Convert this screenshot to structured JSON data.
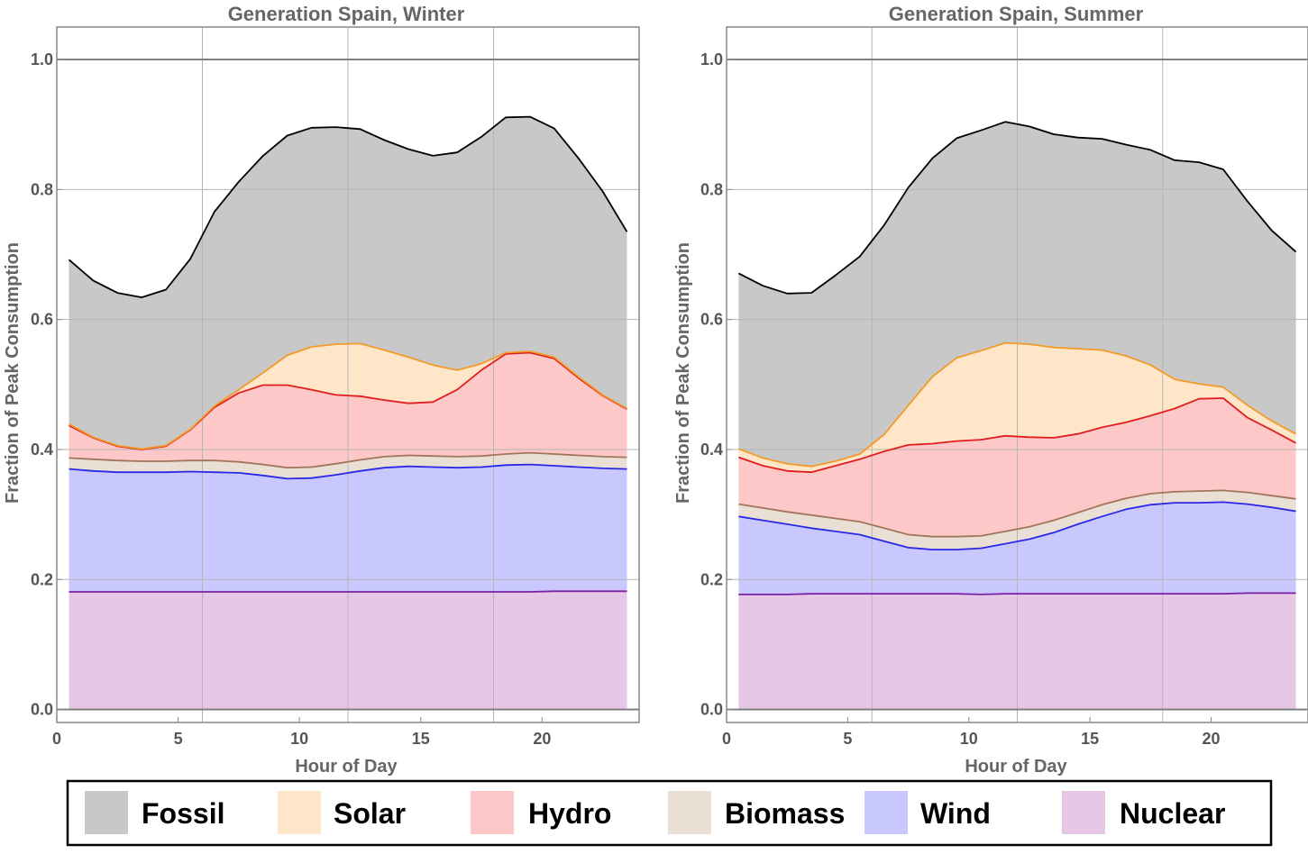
{
  "legend": [
    {
      "key": "fossil",
      "label": "Fossil",
      "fill": "#c8c8c8",
      "line": "#000000"
    },
    {
      "key": "solar",
      "label": "Solar",
      "fill": "#ffe6c8",
      "line": "#f39a28"
    },
    {
      "key": "hydro",
      "label": "Hydro",
      "fill": "#ffc8c8",
      "line": "#e01e1e"
    },
    {
      "key": "biomass",
      "label": "Biomass",
      "fill": "#e9dfd5",
      "line": "#a0765a"
    },
    {
      "key": "wind",
      "label": "Wind",
      "fill": "#c8c8ff",
      "line": "#2828e6"
    },
    {
      "key": "nuclear",
      "label": "Nuclear",
      "fill": "#e6c8e6",
      "line": "#7a1fa6"
    }
  ],
  "chart_data": [
    {
      "type": "area",
      "stacked": true,
      "title": "Generation Spain,  Winter",
      "xlabel": "Hour of Day",
      "ylabel": "Fraction of Peak Consumption",
      "xlim": [
        0,
        24
      ],
      "ylim": [
        -0.02,
        1.05
      ],
      "xticks": [
        0,
        5,
        10,
        15,
        20
      ],
      "yticks": [
        "0.0",
        "0.2",
        "0.4",
        "0.6",
        "0.8",
        "1.0"
      ],
      "ytick_values": [
        0,
        0.2,
        0.4,
        0.6,
        0.8,
        1.0
      ],
      "reference_line": 1.0,
      "grid": true,
      "x": [
        0.5,
        1.5,
        2.5,
        3.5,
        4.5,
        5.5,
        6.5,
        7.5,
        8.5,
        9.5,
        10.5,
        11.5,
        12.5,
        13.5,
        14.5,
        15.5,
        16.5,
        17.5,
        18.5,
        19.5,
        20.5,
        21.5,
        22.5,
        23.5
      ],
      "series_cumulative": [
        {
          "name": "Nuclear",
          "values": [
            0.181,
            0.181,
            0.181,
            0.181,
            0.181,
            0.181,
            0.181,
            0.181,
            0.181,
            0.181,
            0.181,
            0.181,
            0.181,
            0.181,
            0.181,
            0.181,
            0.181,
            0.181,
            0.181,
            0.181,
            0.182,
            0.182,
            0.182,
            0.182
          ]
        },
        {
          "name": "Wind",
          "values": [
            0.37,
            0.367,
            0.365,
            0.365,
            0.365,
            0.366,
            0.365,
            0.364,
            0.36,
            0.355,
            0.356,
            0.361,
            0.367,
            0.372,
            0.374,
            0.373,
            0.372,
            0.373,
            0.376,
            0.377,
            0.375,
            0.373,
            0.371,
            0.37
          ]
        },
        {
          "name": "Biomass",
          "values": [
            0.387,
            0.385,
            0.383,
            0.382,
            0.382,
            0.383,
            0.383,
            0.381,
            0.377,
            0.372,
            0.373,
            0.378,
            0.384,
            0.389,
            0.391,
            0.39,
            0.389,
            0.39,
            0.393,
            0.395,
            0.393,
            0.391,
            0.389,
            0.388
          ]
        },
        {
          "name": "Hydro",
          "values": [
            0.437,
            0.418,
            0.405,
            0.4,
            0.405,
            0.43,
            0.465,
            0.487,
            0.499,
            0.499,
            0.492,
            0.484,
            0.482,
            0.476,
            0.471,
            0.473,
            0.492,
            0.522,
            0.547,
            0.549,
            0.54,
            0.51,
            0.483,
            0.462
          ]
        },
        {
          "name": "Solar",
          "values": [
            0.439,
            0.419,
            0.406,
            0.401,
            0.406,
            0.431,
            0.467,
            0.492,
            0.518,
            0.545,
            0.558,
            0.562,
            0.563,
            0.553,
            0.542,
            0.53,
            0.522,
            0.532,
            0.549,
            0.551,
            0.542,
            0.512,
            0.484,
            0.463
          ]
        },
        {
          "name": "Fossil",
          "values": [
            0.692,
            0.66,
            0.641,
            0.634,
            0.646,
            0.693,
            0.766,
            0.812,
            0.852,
            0.883,
            0.895,
            0.896,
            0.893,
            0.876,
            0.862,
            0.852,
            0.857,
            0.881,
            0.911,
            0.912,
            0.894,
            0.848,
            0.797,
            0.735
          ]
        }
      ]
    },
    {
      "type": "area",
      "stacked": true,
      "title": "Generation Spain,  Summer",
      "xlabel": "Hour of Day",
      "ylabel": "Fraction of Peak Consumption",
      "xlim": [
        0,
        24
      ],
      "ylim": [
        -0.02,
        1.05
      ],
      "xticks": [
        0,
        5,
        10,
        15,
        20
      ],
      "yticks": [
        "0.0",
        "0.2",
        "0.4",
        "0.6",
        "0.8",
        "1.0"
      ],
      "ytick_values": [
        0,
        0.2,
        0.4,
        0.6,
        0.8,
        1.0
      ],
      "reference_line": 1.0,
      "grid": true,
      "x": [
        0.5,
        1.5,
        2.5,
        3.5,
        4.5,
        5.5,
        6.5,
        7.5,
        8.5,
        9.5,
        10.5,
        11.5,
        12.5,
        13.5,
        14.5,
        15.5,
        16.5,
        17.5,
        18.5,
        19.5,
        20.5,
        21.5,
        22.5,
        23.5
      ],
      "series_cumulative": [
        {
          "name": "Nuclear",
          "values": [
            0.177,
            0.177,
            0.177,
            0.178,
            0.178,
            0.178,
            0.178,
            0.178,
            0.178,
            0.178,
            0.177,
            0.178,
            0.178,
            0.178,
            0.178,
            0.178,
            0.178,
            0.178,
            0.178,
            0.178,
            0.178,
            0.179,
            0.179,
            0.179
          ]
        },
        {
          "name": "Wind",
          "values": [
            0.297,
            0.291,
            0.285,
            0.279,
            0.274,
            0.269,
            0.259,
            0.249,
            0.246,
            0.246,
            0.248,
            0.255,
            0.262,
            0.272,
            0.285,
            0.297,
            0.308,
            0.315,
            0.318,
            0.318,
            0.319,
            0.316,
            0.311,
            0.305
          ]
        },
        {
          "name": "Biomass",
          "values": [
            0.316,
            0.31,
            0.304,
            0.299,
            0.294,
            0.289,
            0.279,
            0.269,
            0.266,
            0.266,
            0.267,
            0.274,
            0.281,
            0.291,
            0.303,
            0.315,
            0.325,
            0.332,
            0.335,
            0.336,
            0.337,
            0.334,
            0.329,
            0.324
          ]
        },
        {
          "name": "Hydro",
          "values": [
            0.388,
            0.375,
            0.367,
            0.365,
            0.375,
            0.385,
            0.397,
            0.407,
            0.409,
            0.413,
            0.415,
            0.421,
            0.419,
            0.418,
            0.424,
            0.434,
            0.442,
            0.452,
            0.463,
            0.478,
            0.479,
            0.449,
            0.43,
            0.41
          ]
        },
        {
          "name": "Solar",
          "values": [
            0.401,
            0.387,
            0.378,
            0.374,
            0.382,
            0.393,
            0.423,
            0.468,
            0.512,
            0.541,
            0.552,
            0.564,
            0.562,
            0.557,
            0.555,
            0.553,
            0.544,
            0.53,
            0.508,
            0.501,
            0.496,
            0.468,
            0.444,
            0.424
          ]
        },
        {
          "name": "Fossil",
          "values": [
            0.671,
            0.652,
            0.64,
            0.641,
            0.668,
            0.697,
            0.745,
            0.803,
            0.848,
            0.879,
            0.891,
            0.904,
            0.897,
            0.885,
            0.88,
            0.878,
            0.869,
            0.861,
            0.845,
            0.842,
            0.831,
            0.782,
            0.737,
            0.704
          ]
        }
      ]
    }
  ]
}
